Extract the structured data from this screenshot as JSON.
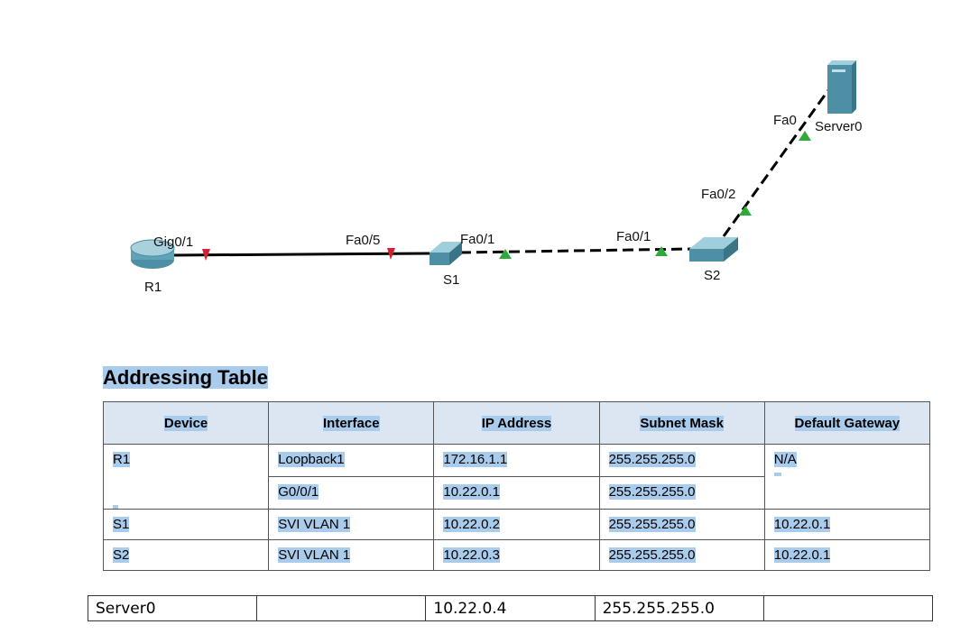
{
  "diagram": {
    "devices": [
      "R1",
      "S1",
      "S2",
      "Server0"
    ],
    "ports": [
      "Gig0/1",
      "Fa0/5",
      "Fa0/1",
      "Fa0/1",
      "Fa0/2",
      "Fa0"
    ]
  },
  "table": {
    "title": "Addressing Table",
    "headers": [
      "Device",
      "Interface",
      "IP Address",
      "Subnet Mask",
      "Default Gateway"
    ],
    "rows": [
      {
        "device": "R1",
        "gateway": "N/A",
        "interfaces": [
          [
            "Loopback1",
            "172.16.1.1",
            "255.255.255.0"
          ],
          [
            "G0/0/1",
            "10.22.0.1",
            "255.255.255.0"
          ]
        ]
      },
      {
        "device": "S1",
        "gateway": "10.22.0.1",
        "interfaces": [
          [
            "SVI VLAN 1",
            "10.22.0.2",
            "255.255.255.0"
          ]
        ]
      },
      {
        "device": "S2",
        "gateway": "10.22.0.1",
        "interfaces": [
          [
            "SVI VLAN 1",
            "10.22.0.3",
            "255.255.255.0"
          ]
        ]
      }
    ]
  },
  "extra_row": {
    "device": "Server0",
    "ip": "10.22.0.4",
    "mask": "255.255.255.0"
  }
}
